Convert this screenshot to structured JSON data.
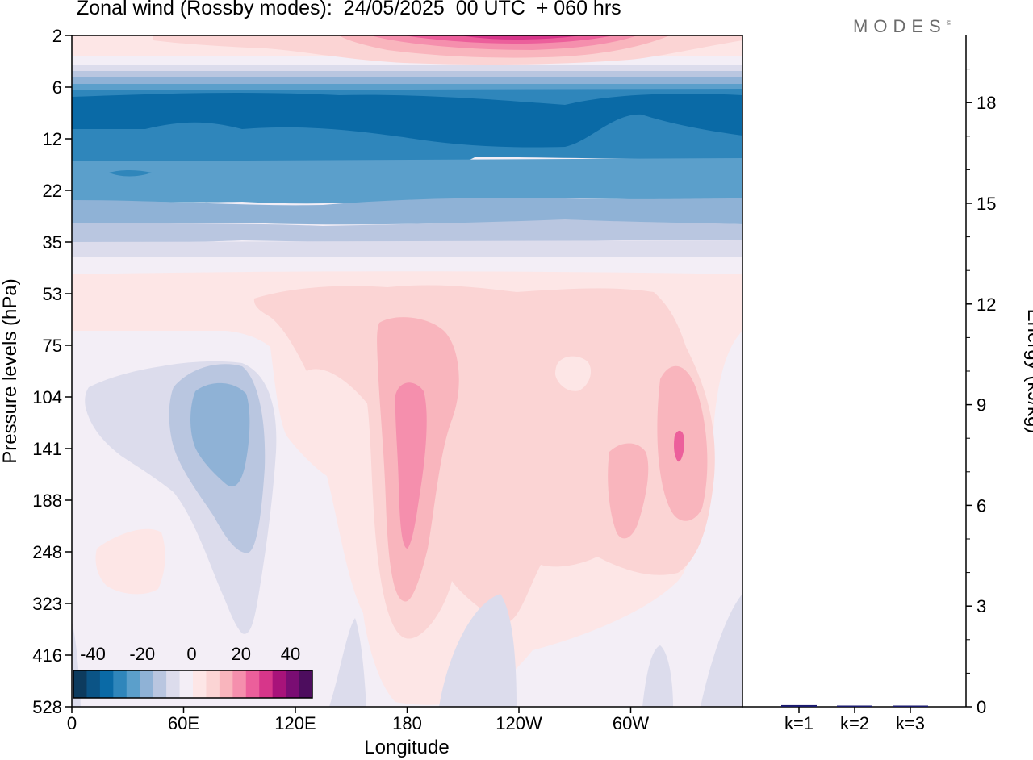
{
  "title": "Zonal wind (Rossby modes):  24/05/2025  00 UTC  + 060 hrs",
  "brand": "MODES",
  "brand_mark": "©",
  "chart_data": [
    {
      "type": "heatmap",
      "title": "Zonal wind (Rossby modes):  24/05/2025  00 UTC  + 060 hrs",
      "xlabel": "Longitude",
      "ylabel": "Pressure levels (hPa)",
      "x_ticks": [
        "0",
        "60E",
        "120E",
        "180",
        "120W",
        "60W"
      ],
      "y_ticks": [
        "2",
        "6",
        "12",
        "22",
        "35",
        "53",
        "75",
        "104",
        "141",
        "188",
        "248",
        "323",
        "416",
        "528"
      ],
      "y_scale": "log",
      "colorbar": {
        "labels": [
          "-40",
          "-20",
          "0",
          "20",
          "40"
        ],
        "colors": [
          "#0d3b5e",
          "#0b5486",
          "#0a6aa6",
          "#2f86bb",
          "#5b9fcb",
          "#8fb2d6",
          "#b9c6e0",
          "#dcdcec",
          "#f3eef6",
          "#fde6e6",
          "#fbd4d4",
          "#f9b5bd",
          "#f58fad",
          "#ec5f9b",
          "#d7368a",
          "#a8137a",
          "#7a0d73",
          "#4d0d5e"
        ],
        "placement": "bottom-left"
      },
      "legend": "inside bottom-left (colorbar)"
    },
    {
      "type": "bar",
      "ylabel": "Energy (kJ/kg)",
      "ylim": [
        0,
        20
      ],
      "y_ticks": [
        "0",
        "3",
        "6",
        "9",
        "12",
        "15",
        "18"
      ],
      "categories": [
        "k=1",
        "k=2",
        "k=3"
      ],
      "values": [
        0.05,
        0.03,
        0.02
      ],
      "bar_color": "#1a1a6e"
    }
  ]
}
